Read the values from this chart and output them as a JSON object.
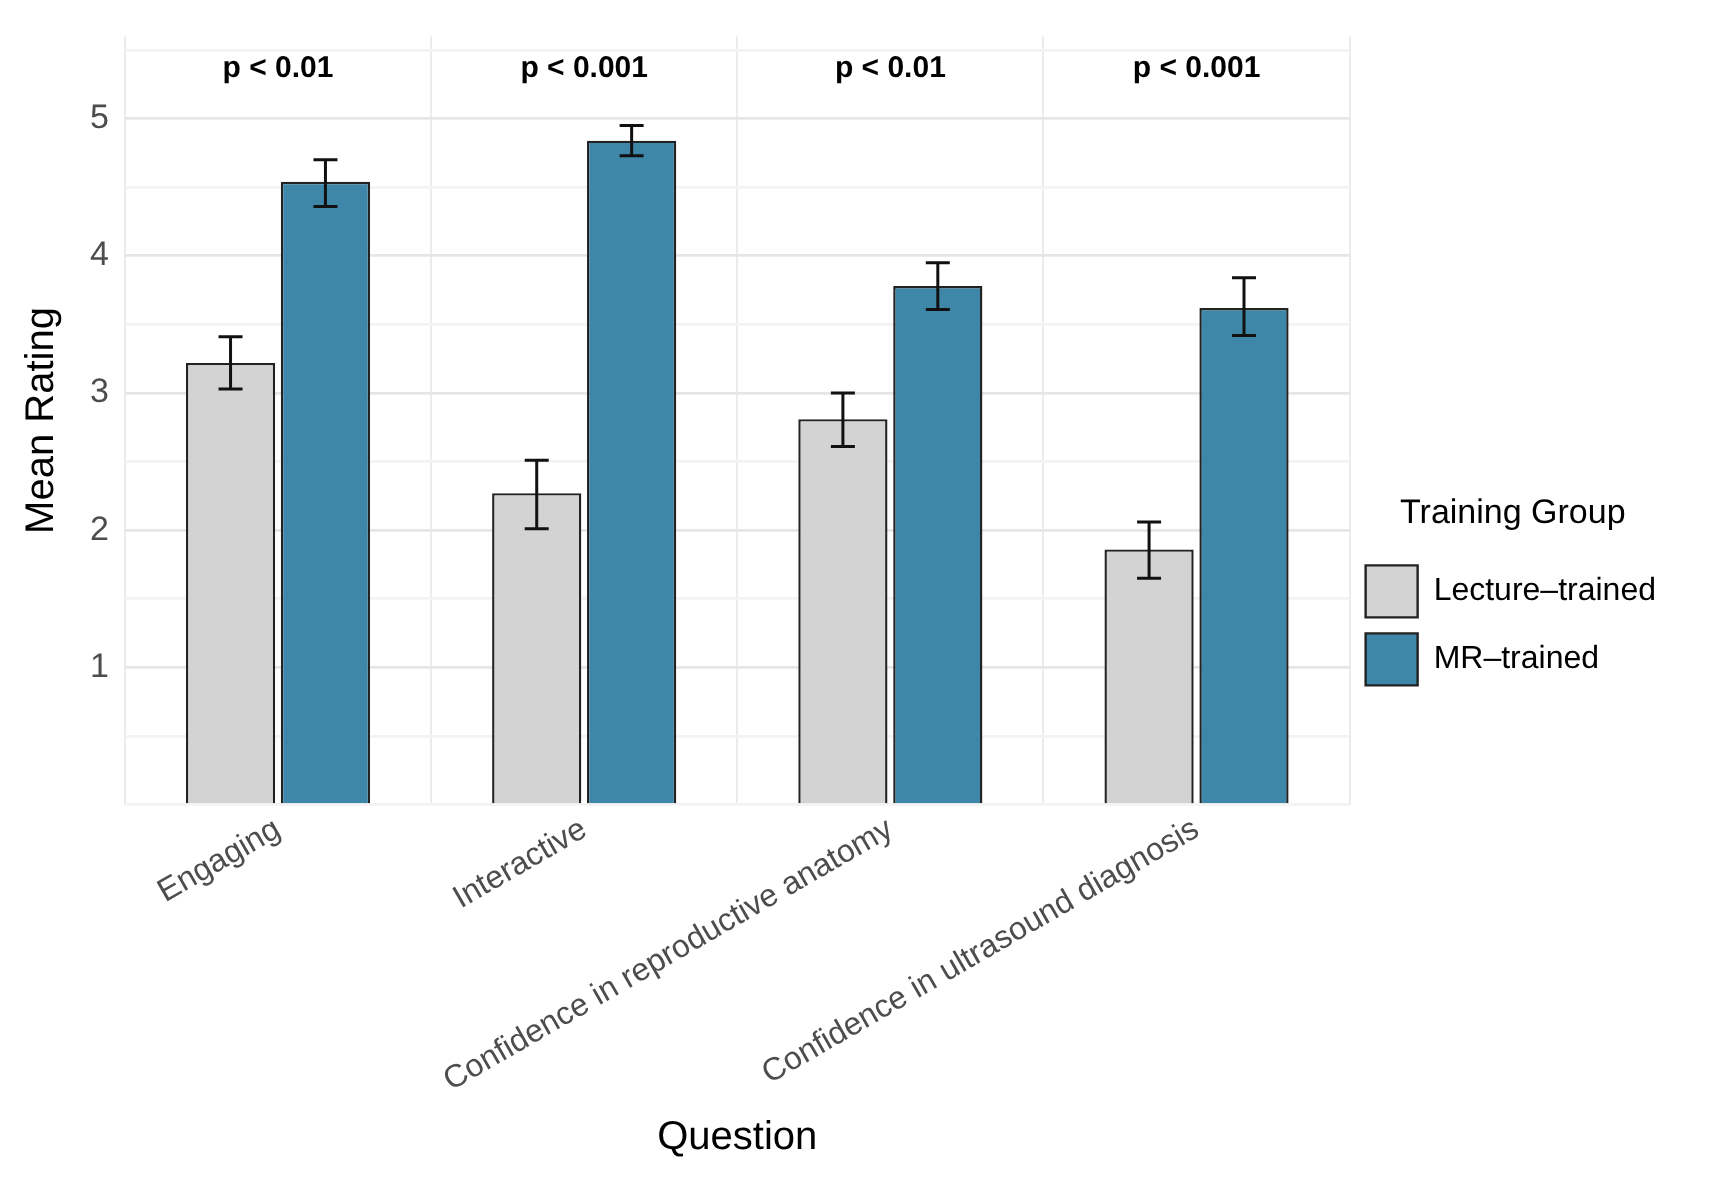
{
  "chart_data": {
    "type": "bar",
    "xlabel": "Question",
    "ylabel": "Mean Rating",
    "legend_title": "Training Group",
    "legend": "right",
    "grid": true,
    "categories": [
      "Engaging",
      "Interactive",
      "Confidence in reproductive anatomy",
      "Confidence in ultrasound diagnosis"
    ],
    "series": [
      {
        "name": "Lecture–trained",
        "color": "#d3d3d3",
        "values": [
          3.22,
          2.27,
          2.81,
          1.86
        ],
        "errors": [
          [
            3.03,
            3.41
          ],
          [
            2.01,
            2.51
          ],
          [
            2.61,
            3.0
          ],
          [
            1.65,
            2.06
          ]
        ]
      },
      {
        "name": "MR–trained",
        "color": "#3f87a9",
        "values": [
          4.54,
          4.84,
          3.78,
          3.62
        ],
        "errors": [
          [
            4.36,
            4.7
          ],
          [
            4.73,
            4.95
          ],
          [
            3.61,
            3.95
          ],
          [
            3.42,
            3.84
          ]
        ]
      }
    ],
    "ylim": [
      0,
      5.6
    ],
    "yticks": [
      {
        "value": 0,
        "label": null
      },
      {
        "value": 0.5,
        "label": null
      },
      1,
      {
        "value": 1.5,
        "label": null
      },
      2,
      {
        "value": 2.5,
        "label": null
      },
      3,
      {
        "value": 3.5,
        "label": null
      },
      4,
      {
        "value": 4.5,
        "label": null
      },
      5,
      {
        "value": 5.5,
        "label": null
      }
    ],
    "annotations": [
      "p < 0.01",
      "p < 0.001",
      "p < 0.01",
      "p < 0.001"
    ]
  }
}
